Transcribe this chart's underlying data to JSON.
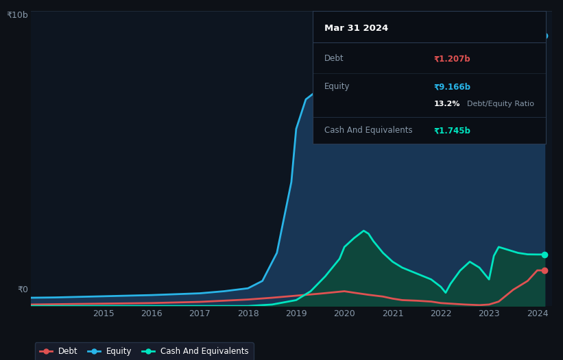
{
  "bg_color": "#0d1117",
  "plot_bg_color": "#0d1520",
  "title": "Mar 31 2024",
  "debt_label": "Debt",
  "debt_value": "₹1.207b",
  "equity_label": "Equity",
  "equity_value": "₹9.166b",
  "ratio_pct": "13.2%",
  "ratio_text": "Debt/Equity Ratio",
  "cash_label": "Cash And Equivalents",
  "cash_value": "₹1.745b",
  "ylabel_top": "₹10b",
  "ylabel_zero": "₹0",
  "x_tick_labels": [
    "2015",
    "2016",
    "2017",
    "2018",
    "2019",
    "2020",
    "2021",
    "2022",
    "2023",
    "2024"
  ],
  "x_ticks": [
    2015,
    2016,
    2017,
    2018,
    2019,
    2020,
    2021,
    2022,
    2023,
    2024
  ],
  "equity_x": [
    2013.5,
    2014.0,
    2014.5,
    2015.0,
    2015.5,
    2016.0,
    2016.5,
    2017.0,
    2017.5,
    2018.0,
    2018.3,
    2018.6,
    2018.9,
    2019.0,
    2019.2,
    2019.4,
    2019.6,
    2019.8,
    2020.0,
    2020.2,
    2020.5,
    2020.8,
    2021.0,
    2021.2,
    2021.5,
    2021.8,
    2022.0,
    2022.2,
    2022.5,
    2022.8,
    2023.0,
    2023.2,
    2023.5,
    2023.8,
    2024.0,
    2024.15
  ],
  "equity_y": [
    0.28,
    0.29,
    0.31,
    0.33,
    0.35,
    0.37,
    0.4,
    0.43,
    0.5,
    0.6,
    0.85,
    1.8,
    4.2,
    6.0,
    7.0,
    7.25,
    7.3,
    7.25,
    7.3,
    7.35,
    7.4,
    7.45,
    7.5,
    7.55,
    7.6,
    7.65,
    7.7,
    7.75,
    7.9,
    8.0,
    8.1,
    8.3,
    8.6,
    8.9,
    9.166,
    9.166
  ],
  "debt_x": [
    2013.5,
    2014.0,
    2014.5,
    2015.0,
    2015.5,
    2016.0,
    2016.5,
    2017.0,
    2017.5,
    2018.0,
    2018.5,
    2019.0,
    2019.5,
    2020.0,
    2020.2,
    2020.5,
    2020.8,
    2021.0,
    2021.2,
    2021.5,
    2021.8,
    2022.0,
    2022.2,
    2022.5,
    2022.8,
    2023.0,
    2023.2,
    2023.5,
    2023.8,
    2024.0,
    2024.15
  ],
  "debt_y": [
    0.05,
    0.06,
    0.07,
    0.08,
    0.09,
    0.1,
    0.12,
    0.14,
    0.18,
    0.22,
    0.28,
    0.35,
    0.42,
    0.5,
    0.45,
    0.38,
    0.32,
    0.25,
    0.2,
    0.18,
    0.15,
    0.1,
    0.08,
    0.05,
    0.03,
    0.05,
    0.15,
    0.55,
    0.85,
    1.207,
    1.207
  ],
  "cash_x": [
    2013.5,
    2014.0,
    2015.0,
    2016.0,
    2017.0,
    2018.0,
    2018.5,
    2019.0,
    2019.3,
    2019.6,
    2019.9,
    2020.0,
    2020.2,
    2020.4,
    2020.5,
    2020.6,
    2020.8,
    2021.0,
    2021.2,
    2021.5,
    2021.8,
    2022.0,
    2022.1,
    2022.2,
    2022.4,
    2022.6,
    2022.8,
    2023.0,
    2023.1,
    2023.2,
    2023.4,
    2023.6,
    2023.8,
    2024.0,
    2024.15
  ],
  "cash_y": [
    0.0,
    0.0,
    0.0,
    0.0,
    0.0,
    0.0,
    0.05,
    0.2,
    0.5,
    1.0,
    1.6,
    2.0,
    2.3,
    2.55,
    2.45,
    2.2,
    1.8,
    1.5,
    1.3,
    1.1,
    0.9,
    0.65,
    0.45,
    0.75,
    1.2,
    1.5,
    1.3,
    0.9,
    1.7,
    2.0,
    1.9,
    1.8,
    1.75,
    1.745,
    1.745
  ],
  "equity_color": "#29b5e8",
  "debt_color": "#e05252",
  "cash_color": "#00e5c0",
  "equity_fill_color": "#1a3a5c",
  "cash_fill_color": "#0d4a3a",
  "line_width": 2.0,
  "ylim": [
    0,
    10
  ],
  "xlim": [
    2013.5,
    2024.3
  ],
  "grid_color": "#1e2a38",
  "tick_color": "#8899aa",
  "legend_bg": "#1a2030",
  "legend_border": "#2a3a50",
  "tooltip_bg": "#0a0e15",
  "tooltip_border": "#2a3a50",
  "tooltip_title_color": "#ffffff",
  "tooltip_label_color": "#8899aa",
  "tooltip_ratio_pct_color": "#ffffff",
  "tooltip_divider_color": "#2a3a50"
}
